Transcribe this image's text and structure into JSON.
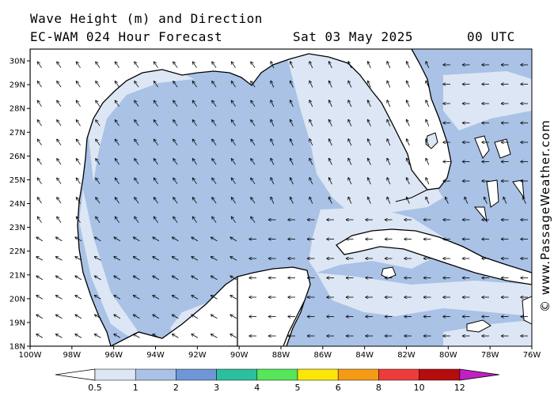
{
  "header": {
    "title": "Wave Height (m) and Direction",
    "subtitle": "EC-WAM 024 Hour Forecast",
    "date": "Sat 03 May 2025",
    "time": "00 UTC"
  },
  "credit": "© www.PassageWeather.com",
  "map": {
    "lon_ticks": [
      "100W",
      "98W",
      "96W",
      "94W",
      "92W",
      "90W",
      "88W",
      "86W",
      "84W",
      "82W",
      "80W",
      "78W",
      "76W"
    ],
    "lat_ticks": [
      "30N",
      "29N",
      "28N",
      "27N",
      "26N",
      "25N",
      "24N",
      "23N",
      "22N",
      "21N",
      "20N",
      "19N",
      "18N"
    ],
    "lon_range": [
      -100,
      -76
    ],
    "lat_range": [
      18,
      30.5
    ]
  },
  "colorbar": {
    "labels": [
      "0.5",
      "1",
      "2",
      "3",
      "4",
      "5",
      "6",
      "8",
      "10",
      "12"
    ],
    "colors": [
      "#dde6f4",
      "#a9c2e6",
      "#6f96d6",
      "#2bbf9e",
      "#55e65a",
      "#fbe60a",
      "#f59a15",
      "#ec3d3b",
      "#b50d0d",
      "#c11fc4"
    ]
  },
  "colors": {
    "land": "#ffffff",
    "band_light": "#dde6f4",
    "band_mid": "#a9c2e6",
    "coast": "#000000"
  }
}
